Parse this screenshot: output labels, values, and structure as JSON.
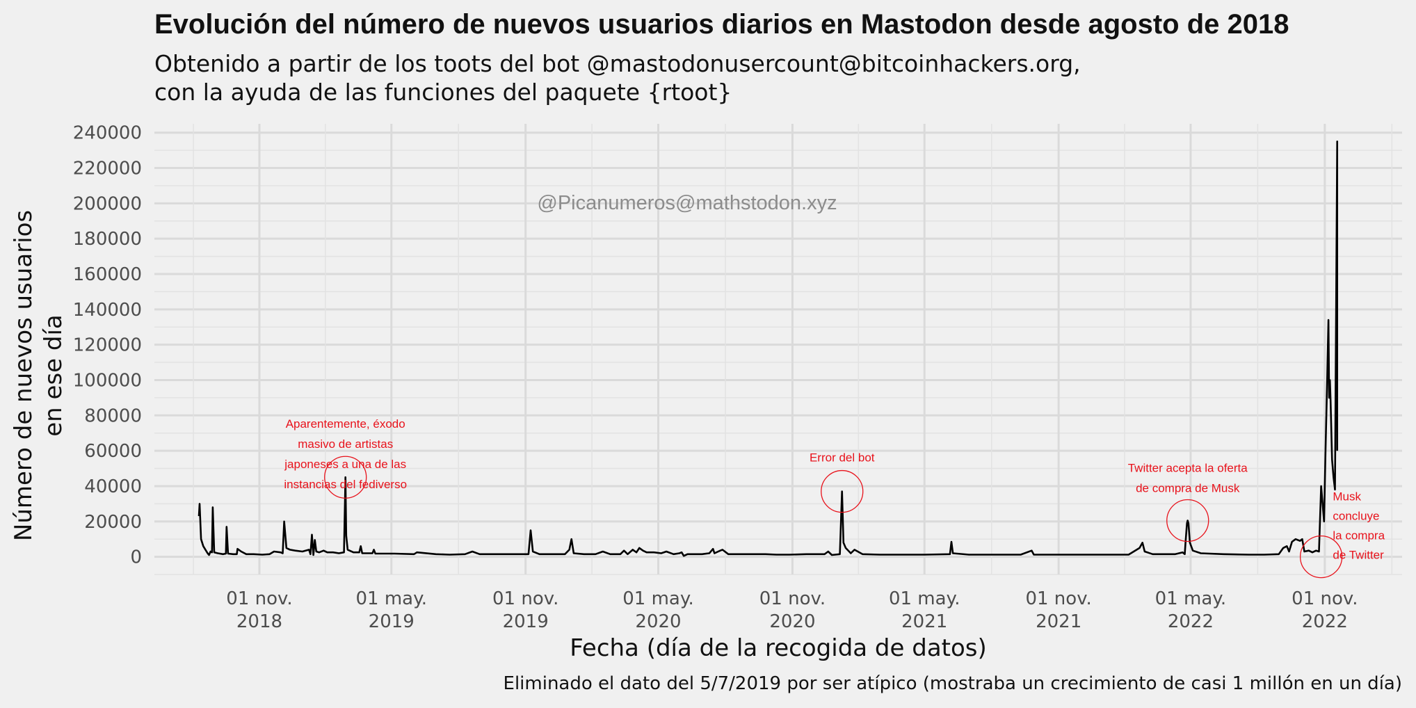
{
  "chart_data": {
    "type": "line",
    "title": "Evolución del número de nuevos usuarios diarios en Mastodon desde agosto de 2018",
    "subtitle_lines": [
      "Obtenido a partir de los toots del bot @mastodonusercount@bitcoinhackers.org,",
      "con la ayuda de las funciones del paquete {rtoot}"
    ],
    "xlabel": "Fecha (día de la recogida de datos)",
    "ylabel_lines": [
      "Número de nuevos usuarios",
      "en ese día"
    ],
    "caption": "Eliminado el dato del 5/7/2019 por ser atípico (mostraba un crecimiento de casi 1 millón en un día)",
    "watermark": "@Picanumeros@mathstodon.xyz",
    "xlim": [
      "2018-06-10",
      "2023-02-15"
    ],
    "ylim": [
      -10000,
      245000
    ],
    "yticks": [
      0,
      20000,
      40000,
      60000,
      80000,
      100000,
      120000,
      140000,
      160000,
      180000,
      200000,
      220000,
      240000
    ],
    "ytick_labels": [
      "0",
      "20000",
      "40000",
      "60000",
      "80000",
      "100000",
      "120000",
      "140000",
      "160000",
      "180000",
      "200000",
      "220000",
      "240000"
    ],
    "xticks": [
      {
        "date": "2018-11-01",
        "line1": "01 nov.",
        "line2": "2018"
      },
      {
        "date": "2019-05-01",
        "line1": "01 may.",
        "line2": "2019"
      },
      {
        "date": "2019-11-01",
        "line1": "01 nov.",
        "line2": "2019"
      },
      {
        "date": "2020-05-01",
        "line1": "01 may.",
        "line2": "2020"
      },
      {
        "date": "2020-11-01",
        "line1": "01 nov.",
        "line2": "2020"
      },
      {
        "date": "2021-05-01",
        "line1": "01 may.",
        "line2": "2021"
      },
      {
        "date": "2021-11-01",
        "line1": "01 nov.",
        "line2": "2021"
      },
      {
        "date": "2022-05-01",
        "line1": "01 may.",
        "line2": "2022"
      },
      {
        "date": "2022-11-01",
        "line1": "01 nov.",
        "line2": "2022"
      }
    ],
    "grid": true,
    "series": [
      {
        "line_color": "#000000",
        "points": [
          [
            "2018-08-10",
            23000
          ],
          [
            "2018-08-11",
            30000
          ],
          [
            "2018-08-13",
            10000
          ],
          [
            "2018-08-16",
            6000
          ],
          [
            "2018-08-19",
            4000
          ],
          [
            "2018-08-22",
            2000
          ],
          [
            "2018-08-24",
            1000
          ],
          [
            "2018-08-26",
            3000
          ],
          [
            "2018-08-28",
            2500
          ],
          [
            "2018-08-29",
            28000
          ],
          [
            "2018-08-31",
            2500
          ],
          [
            "2018-09-05",
            2000
          ],
          [
            "2018-09-12",
            1500
          ],
          [
            "2018-09-16",
            1800
          ],
          [
            "2018-09-17",
            17000
          ],
          [
            "2018-09-19",
            1800
          ],
          [
            "2018-09-26",
            1500
          ],
          [
            "2018-10-01",
            1500
          ],
          [
            "2018-10-02",
            4500
          ],
          [
            "2018-10-07",
            3000
          ],
          [
            "2018-10-14",
            1500
          ],
          [
            "2018-10-24",
            1500
          ],
          [
            "2018-11-05",
            1200
          ],
          [
            "2018-11-15",
            1500
          ],
          [
            "2018-11-21",
            3000
          ],
          [
            "2018-11-30",
            2500
          ],
          [
            "2018-12-03",
            2000
          ],
          [
            "2018-12-05",
            20000
          ],
          [
            "2018-12-08",
            5000
          ],
          [
            "2018-12-13",
            4000
          ],
          [
            "2018-12-20",
            3500
          ],
          [
            "2018-12-30",
            3000
          ],
          [
            "2019-01-08",
            4000
          ],
          [
            "2019-01-10",
            1500
          ],
          [
            "2019-01-12",
            12500
          ],
          [
            "2019-01-14",
            1000
          ],
          [
            "2019-01-16",
            9500
          ],
          [
            "2019-01-18",
            3000
          ],
          [
            "2019-01-22",
            2500
          ],
          [
            "2019-01-28",
            3500
          ],
          [
            "2019-02-02",
            2500
          ],
          [
            "2019-02-10",
            2500
          ],
          [
            "2019-02-18",
            2000
          ],
          [
            "2019-02-25",
            2500
          ],
          [
            "2019-02-27",
            45000
          ],
          [
            "2019-02-28",
            12000
          ],
          [
            "2019-03-02",
            4000
          ],
          [
            "2019-03-10",
            2500
          ],
          [
            "2019-03-18",
            2500
          ],
          [
            "2019-03-20",
            6000
          ],
          [
            "2019-03-22",
            2000
          ],
          [
            "2019-04-05",
            2000
          ],
          [
            "2019-04-07",
            4000
          ],
          [
            "2019-04-09",
            1800
          ],
          [
            "2019-05-05",
            1800
          ],
          [
            "2019-06-01",
            1500
          ],
          [
            "2019-06-05",
            2500
          ],
          [
            "2019-07-01",
            1500
          ],
          [
            "2019-07-20",
            1200
          ],
          [
            "2019-08-10",
            1500
          ],
          [
            "2019-08-20",
            3000
          ],
          [
            "2019-08-30",
            1500
          ],
          [
            "2019-09-30",
            1500
          ],
          [
            "2019-10-30",
            1500
          ],
          [
            "2019-11-05",
            1500
          ],
          [
            "2019-11-08",
            15000
          ],
          [
            "2019-11-11",
            3000
          ],
          [
            "2019-11-20",
            1500
          ],
          [
            "2019-12-10",
            1500
          ],
          [
            "2019-12-25",
            1500
          ],
          [
            "2019-12-31",
            4000
          ],
          [
            "2020-01-03",
            10000
          ],
          [
            "2020-01-06",
            2000
          ],
          [
            "2020-01-20",
            1500
          ],
          [
            "2020-02-05",
            1500
          ],
          [
            "2020-02-15",
            3000
          ],
          [
            "2020-02-25",
            1500
          ],
          [
            "2020-03-10",
            1500
          ],
          [
            "2020-03-15",
            3500
          ],
          [
            "2020-03-20",
            1500
          ],
          [
            "2020-03-27",
            4000
          ],
          [
            "2020-04-01",
            2500
          ],
          [
            "2020-04-05",
            5000
          ],
          [
            "2020-04-10",
            3500
          ],
          [
            "2020-04-15",
            2500
          ],
          [
            "2020-04-25",
            2500
          ],
          [
            "2020-05-05",
            2000
          ],
          [
            "2020-05-12",
            3000
          ],
          [
            "2020-05-22",
            1500
          ],
          [
            "2020-05-30",
            2000
          ],
          [
            "2020-06-02",
            2500
          ],
          [
            "2020-06-05",
            500
          ],
          [
            "2020-06-10",
            1500
          ],
          [
            "2020-06-30",
            1500
          ],
          [
            "2020-07-10",
            2000
          ],
          [
            "2020-07-15",
            4500
          ],
          [
            "2020-07-17",
            2000
          ],
          [
            "2020-07-25",
            3500
          ],
          [
            "2020-07-28",
            4000
          ],
          [
            "2020-08-05",
            1500
          ],
          [
            "2020-08-25",
            1500
          ],
          [
            "2020-09-10",
            1500
          ],
          [
            "2020-09-25",
            1500
          ],
          [
            "2020-10-10",
            1200
          ],
          [
            "2020-10-28",
            1200
          ],
          [
            "2020-11-20",
            1500
          ],
          [
            "2020-12-15",
            1500
          ],
          [
            "2020-12-20",
            3000
          ],
          [
            "2020-12-25",
            1000
          ],
          [
            "2021-01-05",
            1500
          ],
          [
            "2021-01-08",
            37000
          ],
          [
            "2021-01-10",
            8000
          ],
          [
            "2021-01-13",
            5000
          ],
          [
            "2021-01-20",
            2000
          ],
          [
            "2021-01-25",
            4000
          ],
          [
            "2021-02-05",
            1500
          ],
          [
            "2021-03-01",
            1200
          ],
          [
            "2021-04-01",
            1200
          ],
          [
            "2021-05-01",
            1200
          ],
          [
            "2021-06-05",
            1500
          ],
          [
            "2021-06-07",
            8500
          ],
          [
            "2021-06-09",
            2000
          ],
          [
            "2021-07-01",
            1200
          ],
          [
            "2021-07-15",
            1200
          ],
          [
            "2021-08-10",
            1200
          ],
          [
            "2021-09-10",
            1200
          ],
          [
            "2021-09-25",
            3500
          ],
          [
            "2021-09-28",
            1200
          ],
          [
            "2021-10-25",
            1200
          ],
          [
            "2021-11-20",
            1200
          ],
          [
            "2021-12-20",
            1200
          ],
          [
            "2022-01-10",
            1200
          ],
          [
            "2022-02-05",
            1200
          ],
          [
            "2022-02-20",
            5000
          ],
          [
            "2022-02-24",
            8000
          ],
          [
            "2022-02-27",
            3000
          ],
          [
            "2022-03-10",
            1500
          ],
          [
            "2022-04-10",
            1500
          ],
          [
            "2022-04-20",
            2500
          ],
          [
            "2022-04-23",
            1500
          ],
          [
            "2022-04-24",
            8000
          ],
          [
            "2022-04-26",
            19000
          ],
          [
            "2022-04-27",
            20500
          ],
          [
            "2022-04-28",
            19000
          ],
          [
            "2022-04-30",
            8000
          ],
          [
            "2022-05-04",
            3500
          ],
          [
            "2022-05-15",
            2000
          ],
          [
            "2022-06-15",
            1500
          ],
          [
            "2022-07-20",
            1200
          ],
          [
            "2022-08-10",
            1200
          ],
          [
            "2022-08-30",
            1500
          ],
          [
            "2022-09-05",
            5000
          ],
          [
            "2022-09-10",
            6000
          ],
          [
            "2022-09-13",
            3000
          ],
          [
            "2022-09-17",
            8500
          ],
          [
            "2022-09-22",
            10000
          ],
          [
            "2022-09-28",
            9000
          ],
          [
            "2022-10-01",
            10000
          ],
          [
            "2022-10-04",
            3000
          ],
          [
            "2022-10-10",
            3500
          ],
          [
            "2022-10-15",
            2500
          ],
          [
            "2022-10-20",
            3500
          ],
          [
            "2022-10-24",
            3000
          ],
          [
            "2022-10-27",
            40000
          ],
          [
            "2022-10-29",
            30000
          ],
          [
            "2022-10-31",
            20000
          ],
          [
            "2022-11-02",
            60000
          ],
          [
            "2022-11-04",
            95000
          ],
          [
            "2022-11-06",
            134000
          ],
          [
            "2022-11-07",
            90000
          ],
          [
            "2022-11-08",
            100000
          ],
          [
            "2022-11-09",
            88000
          ],
          [
            "2022-11-11",
            55000
          ],
          [
            "2022-11-13",
            45000
          ],
          [
            "2022-11-15",
            38000
          ],
          [
            "2022-11-18",
            235000
          ],
          [
            "2022-11-18",
            60000
          ]
        ]
      }
    ],
    "annotations": [
      {
        "lines": [
          "Aparentemente, éxodo",
          "masivo de artistas",
          "japoneses a una de las",
          "instancias del fediverso"
        ],
        "date": "2019-02-27",
        "value": 45000,
        "text_anchor": "middle",
        "text_date": "2019-02-27",
        "text_value": 73000
      },
      {
        "lines": [
          "Error del bot"
        ],
        "date": "2021-01-08",
        "value": 37000,
        "text_anchor": "middle",
        "text_date": "2021-01-08",
        "text_value": 54000
      },
      {
        "lines": [
          "Twitter acepta la oferta",
          "de compra de Musk"
        ],
        "date": "2022-04-27",
        "value": 20500,
        "text_anchor": "middle",
        "text_date": "2022-04-27",
        "text_value": 48000
      },
      {
        "lines": [
          "Musk",
          "concluye",
          "la compra",
          "de Twitter"
        ],
        "date": "2022-10-27",
        "value": 0,
        "text_anchor": "start",
        "text_date": "2022-11-12",
        "text_value": 32000
      }
    ],
    "annotation_color": "#e8121b"
  }
}
